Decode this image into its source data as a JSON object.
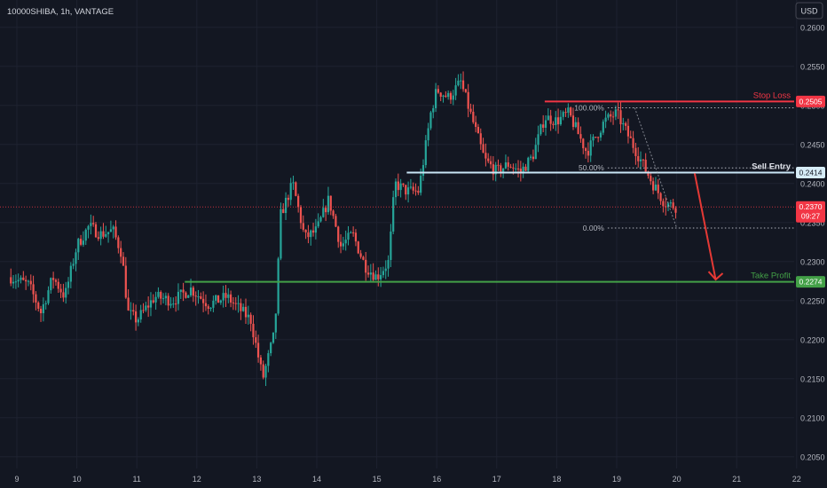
{
  "header": {
    "symbol": "10000SHIBA, 1h, VANTAGE",
    "currency": "USD"
  },
  "colors": {
    "background": "#131722",
    "grid": "#1e2230",
    "axis_text": "#b2b5be",
    "bull": "#26a69a",
    "bear": "#ef5350",
    "stop_loss": "#f23645",
    "sell_entry": "#c8e6f5",
    "take_profit": "#43a047",
    "price": "#f23645",
    "fib": "#b2b5be",
    "arrow": "#e53935"
  },
  "chart_data": {
    "type": "candlestick",
    "y_range": [
      0.2035,
      0.2635
    ],
    "y_ticks": [
      "0.2600",
      "0.2550",
      "0.2500",
      "0.2450",
      "0.2400",
      "0.2350",
      "0.2300",
      "0.2250",
      "0.2200",
      "0.2150",
      "0.2100",
      "0.2050"
    ],
    "x_ticks": [
      "9",
      "10",
      "11",
      "12",
      "13",
      "14",
      "15",
      "16",
      "17",
      "18",
      "19",
      "20",
      "21",
      "22"
    ],
    "levels": [
      {
        "name": "Stop Loss",
        "value": "0.2505",
        "price": 0.2505
      },
      {
        "name": "Sell Entry",
        "value": "0.2414",
        "price": 0.2414
      },
      {
        "name": "Take Profit",
        "value": "0.2274",
        "price": 0.2274
      }
    ],
    "fib": [
      {
        "label": "100.00%",
        "price": 0.2497
      },
      {
        "label": "50.00%",
        "price": 0.242
      },
      {
        "label": "0.00%",
        "price": 0.2343
      }
    ],
    "current_price": {
      "value": "0.2370",
      "countdown": "09:27",
      "price": 0.237
    },
    "price_path": [
      [
        8.9,
        0.228
      ],
      [
        9.2,
        0.227
      ],
      [
        9.4,
        0.2235
      ],
      [
        9.6,
        0.228
      ],
      [
        9.8,
        0.2255
      ],
      [
        10.0,
        0.232
      ],
      [
        10.2,
        0.2345
      ],
      [
        10.4,
        0.2335
      ],
      [
        10.6,
        0.234
      ],
      [
        10.75,
        0.231
      ],
      [
        10.85,
        0.2235
      ],
      [
        11.0,
        0.2225
      ],
      [
        11.3,
        0.2255
      ],
      [
        11.6,
        0.225
      ],
      [
        11.9,
        0.2265
      ],
      [
        12.2,
        0.2245
      ],
      [
        12.5,
        0.2255
      ],
      [
        12.7,
        0.224
      ],
      [
        12.9,
        0.2225
      ],
      [
        13.1,
        0.215
      ],
      [
        13.3,
        0.221
      ],
      [
        13.4,
        0.236
      ],
      [
        13.6,
        0.24
      ],
      [
        13.8,
        0.233
      ],
      [
        14.0,
        0.234
      ],
      [
        14.2,
        0.238
      ],
      [
        14.4,
        0.232
      ],
      [
        14.6,
        0.2335
      ],
      [
        14.8,
        0.2295
      ],
      [
        15.0,
        0.228
      ],
      [
        15.2,
        0.23
      ],
      [
        15.3,
        0.24
      ],
      [
        15.5,
        0.239
      ],
      [
        15.7,
        0.239
      ],
      [
        15.9,
        0.249
      ],
      [
        16.0,
        0.252
      ],
      [
        16.2,
        0.251
      ],
      [
        16.4,
        0.253
      ],
      [
        16.6,
        0.248
      ],
      [
        16.8,
        0.243
      ],
      [
        17.0,
        0.2415
      ],
      [
        17.2,
        0.2425
      ],
      [
        17.4,
        0.2415
      ],
      [
        17.6,
        0.2435
      ],
      [
        17.8,
        0.2485
      ],
      [
        18.0,
        0.248
      ],
      [
        18.2,
        0.249
      ],
      [
        18.5,
        0.244
      ],
      [
        18.8,
        0.248
      ],
      [
        19.0,
        0.249
      ],
      [
        19.2,
        0.246
      ],
      [
        19.4,
        0.243
      ],
      [
        19.6,
        0.24
      ],
      [
        19.8,
        0.2375
      ],
      [
        20.0,
        0.237
      ]
    ]
  }
}
